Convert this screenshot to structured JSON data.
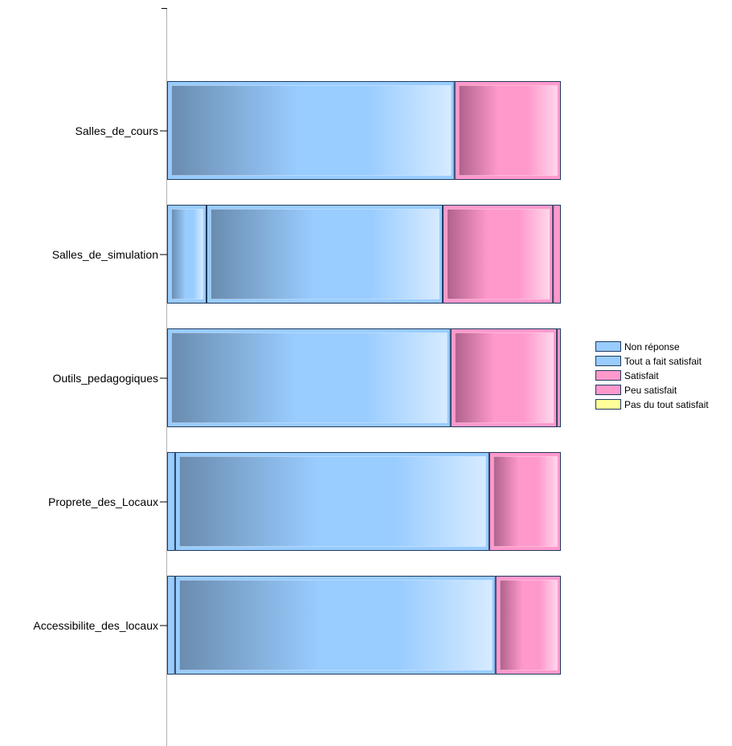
{
  "chart_data": {
    "type": "bar",
    "orientation": "horizontal",
    "stacked": "100%",
    "title": "",
    "xlabel": "",
    "ylabel": "",
    "categories": [
      "Salles_de_cours",
      "Salles_de_simulation",
      "Outils_pedagogiques",
      "Proprete_des_Locaux",
      "Accessibilite_des_locaux"
    ],
    "series": [
      {
        "name": "Non réponse",
        "values": [
          0,
          10,
          0,
          2,
          2
        ],
        "color": "#99CCFF"
      },
      {
        "name": "Tout a fait satisfait",
        "values": [
          73,
          60,
          72,
          79,
          81
        ],
        "color": "#99CCFF"
      },
      {
        "name": "Satisfait",
        "values": [
          27,
          28,
          27,
          18,
          16.5
        ],
        "color": "#FF99CC"
      },
      {
        "name": "Peu satisfait",
        "values": [
          0,
          2,
          1,
          0,
          0
        ],
        "color": "#FF99CC"
      },
      {
        "name": "Pas du tout satisfait",
        "values": [
          0,
          0,
          0,
          0,
          0
        ],
        "color": "#FFFF99"
      }
    ],
    "xlim": [
      0,
      100
    ],
    "grid": false,
    "legend_position": "right"
  }
}
